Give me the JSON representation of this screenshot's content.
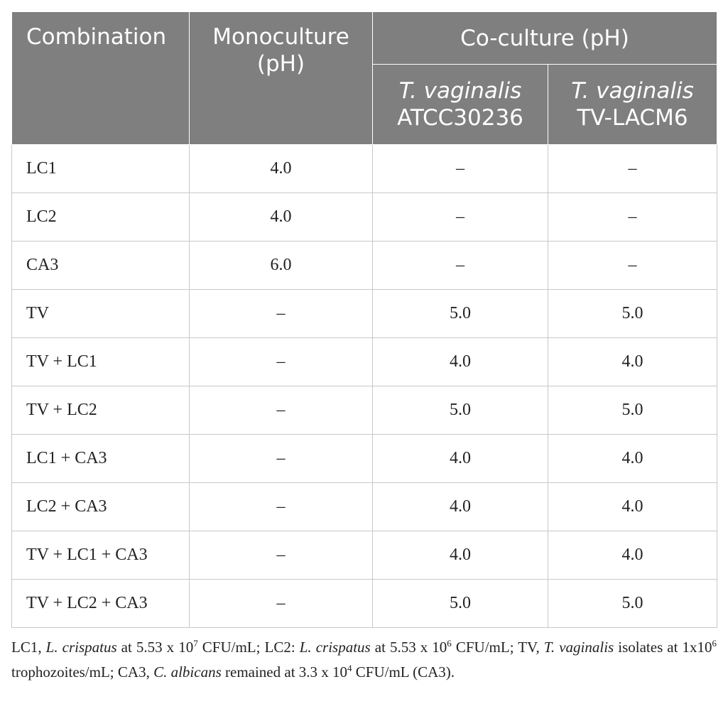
{
  "table": {
    "headers": {
      "combination": "Combination",
      "monoculture_line1": "Monoculture",
      "monoculture_line2": "(pH)",
      "coculture": "Co-culture (pH)",
      "strain1_italic": "T. vaginalis",
      "strain1_id": "ATCC30236",
      "strain2_italic": "T. vaginalis",
      "strain2_id": "TV-LACM6"
    },
    "rows": [
      {
        "combination": "LC1",
        "monoculture": "4.0",
        "atcc30236": "–",
        "tv_lacm6": "–"
      },
      {
        "combination": "LC2",
        "monoculture": "4.0",
        "atcc30236": "–",
        "tv_lacm6": "–"
      },
      {
        "combination": "CA3",
        "monoculture": "6.0",
        "atcc30236": "–",
        "tv_lacm6": "–"
      },
      {
        "combination": "TV",
        "monoculture": "–",
        "atcc30236": "5.0",
        "tv_lacm6": "5.0"
      },
      {
        "combination": "TV + LC1",
        "monoculture": "–",
        "atcc30236": "4.0",
        "tv_lacm6": "4.0"
      },
      {
        "combination": "TV + LC2",
        "monoculture": "–",
        "atcc30236": "5.0",
        "tv_lacm6": "5.0"
      },
      {
        "combination": "LC1 + CA3",
        "monoculture": "–",
        "atcc30236": "4.0",
        "tv_lacm6": "4.0"
      },
      {
        "combination": "LC2 + CA3",
        "monoculture": "–",
        "atcc30236": "4.0",
        "tv_lacm6": "4.0"
      },
      {
        "combination": "TV + LC1 + CA3",
        "monoculture": "–",
        "atcc30236": "4.0",
        "tv_lacm6": "4.0"
      },
      {
        "combination": "TV + LC2 + CA3",
        "monoculture": "–",
        "atcc30236": "5.0",
        "tv_lacm6": "5.0"
      }
    ]
  },
  "footnote": {
    "p1": "LC1, ",
    "i1": "L. crispatus",
    "p2": " at 5.53 x 10",
    "s1": "7",
    "p3": " CFU/mL; LC2: ",
    "i2": "L. crispatus",
    "p4": " at 5.53 x 10",
    "s2": "6",
    "p5": " CFU/mL; TV, ",
    "i3": "T. vaginalis",
    "p6": " isolates at 1x10",
    "s3": "6",
    "p7": " trophozoites/mL; CA3, ",
    "i4": "C. albicans",
    "p8": " remained at 3.3 x 10",
    "s4": "4",
    "p9": " CFU/mL (CA3)."
  },
  "colors": {
    "header_bg": "#7f7f7f",
    "header_text": "#ffffff",
    "grid_line": "#c8c8c8",
    "body_text": "#222222"
  }
}
